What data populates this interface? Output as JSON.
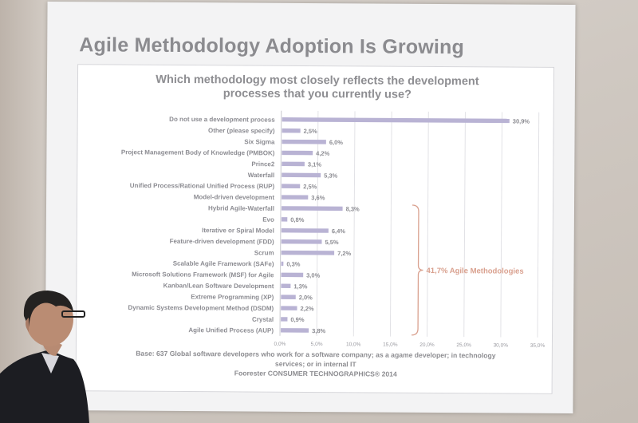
{
  "slide": {
    "title": "Agile Methodology Adoption Is Growing",
    "footnote": "Base: 637 Global software developers who work for a software company; as a agame developer; in technology services; or in internal IT",
    "source": "Foorester CONSUMER TECHNOGRAPHICS® 2014"
  },
  "chart_data": {
    "type": "bar",
    "orientation": "horizontal",
    "title": "Which methodology most closely reflects the development processes that you currently use?",
    "categories": [
      "Do not use a development process",
      "Other (please specify)",
      "Six Sigma",
      "Project Management Body of Knowledge (PMBOK)",
      "Prince2",
      "Waterfall",
      "Unified Process/Rational Unified Process (RUP)",
      "Model-driven development",
      "Hybrid Agile-Waterfall",
      "Evo",
      "Iterative or Spiral Model",
      "Feature-driven development (FDD)",
      "Scrum",
      "Scalable Agile Framework (SAFe)",
      "Microsoft Solutions Framework (MSF) for Agile",
      "Kanban/Lean Software Development",
      "Extreme Programming (XP)",
      "Dynamic Systems Development Method (DSDM)",
      "Crystal",
      "Agile Unified Process (AUP)"
    ],
    "values": [
      30.9,
      2.5,
      6.0,
      4.2,
      3.1,
      5.3,
      2.5,
      3.6,
      8.3,
      0.8,
      6.4,
      5.5,
      7.2,
      0.3,
      3.0,
      1.3,
      2.0,
      2.2,
      0.9,
      3.8
    ],
    "value_labels": [
      "30,9%",
      "2,5%",
      "6,0%",
      "4,2%",
      "3,1%",
      "5,3%",
      "2,5%",
      "3,6%",
      "8,3%",
      "0,8%",
      "6,4%",
      "5,5%",
      "7,2%",
      "0,3%",
      "3,0%",
      "1,3%",
      "2,0%",
      "2,2%",
      "0,9%",
      "3,8%"
    ],
    "xlim": [
      0,
      35
    ],
    "xticks": [
      "0,0%",
      "5,0%",
      "10,0%",
      "15,0%",
      "20,0%",
      "25,0%",
      "30,0%",
      "35,0%"
    ],
    "grid": true,
    "bar_color": "#b9b3d4",
    "annotation": {
      "text": "41,7% Agile Methodologies",
      "from_category_index": 8,
      "to_category_index": 19,
      "color": "#d9a08e"
    }
  }
}
